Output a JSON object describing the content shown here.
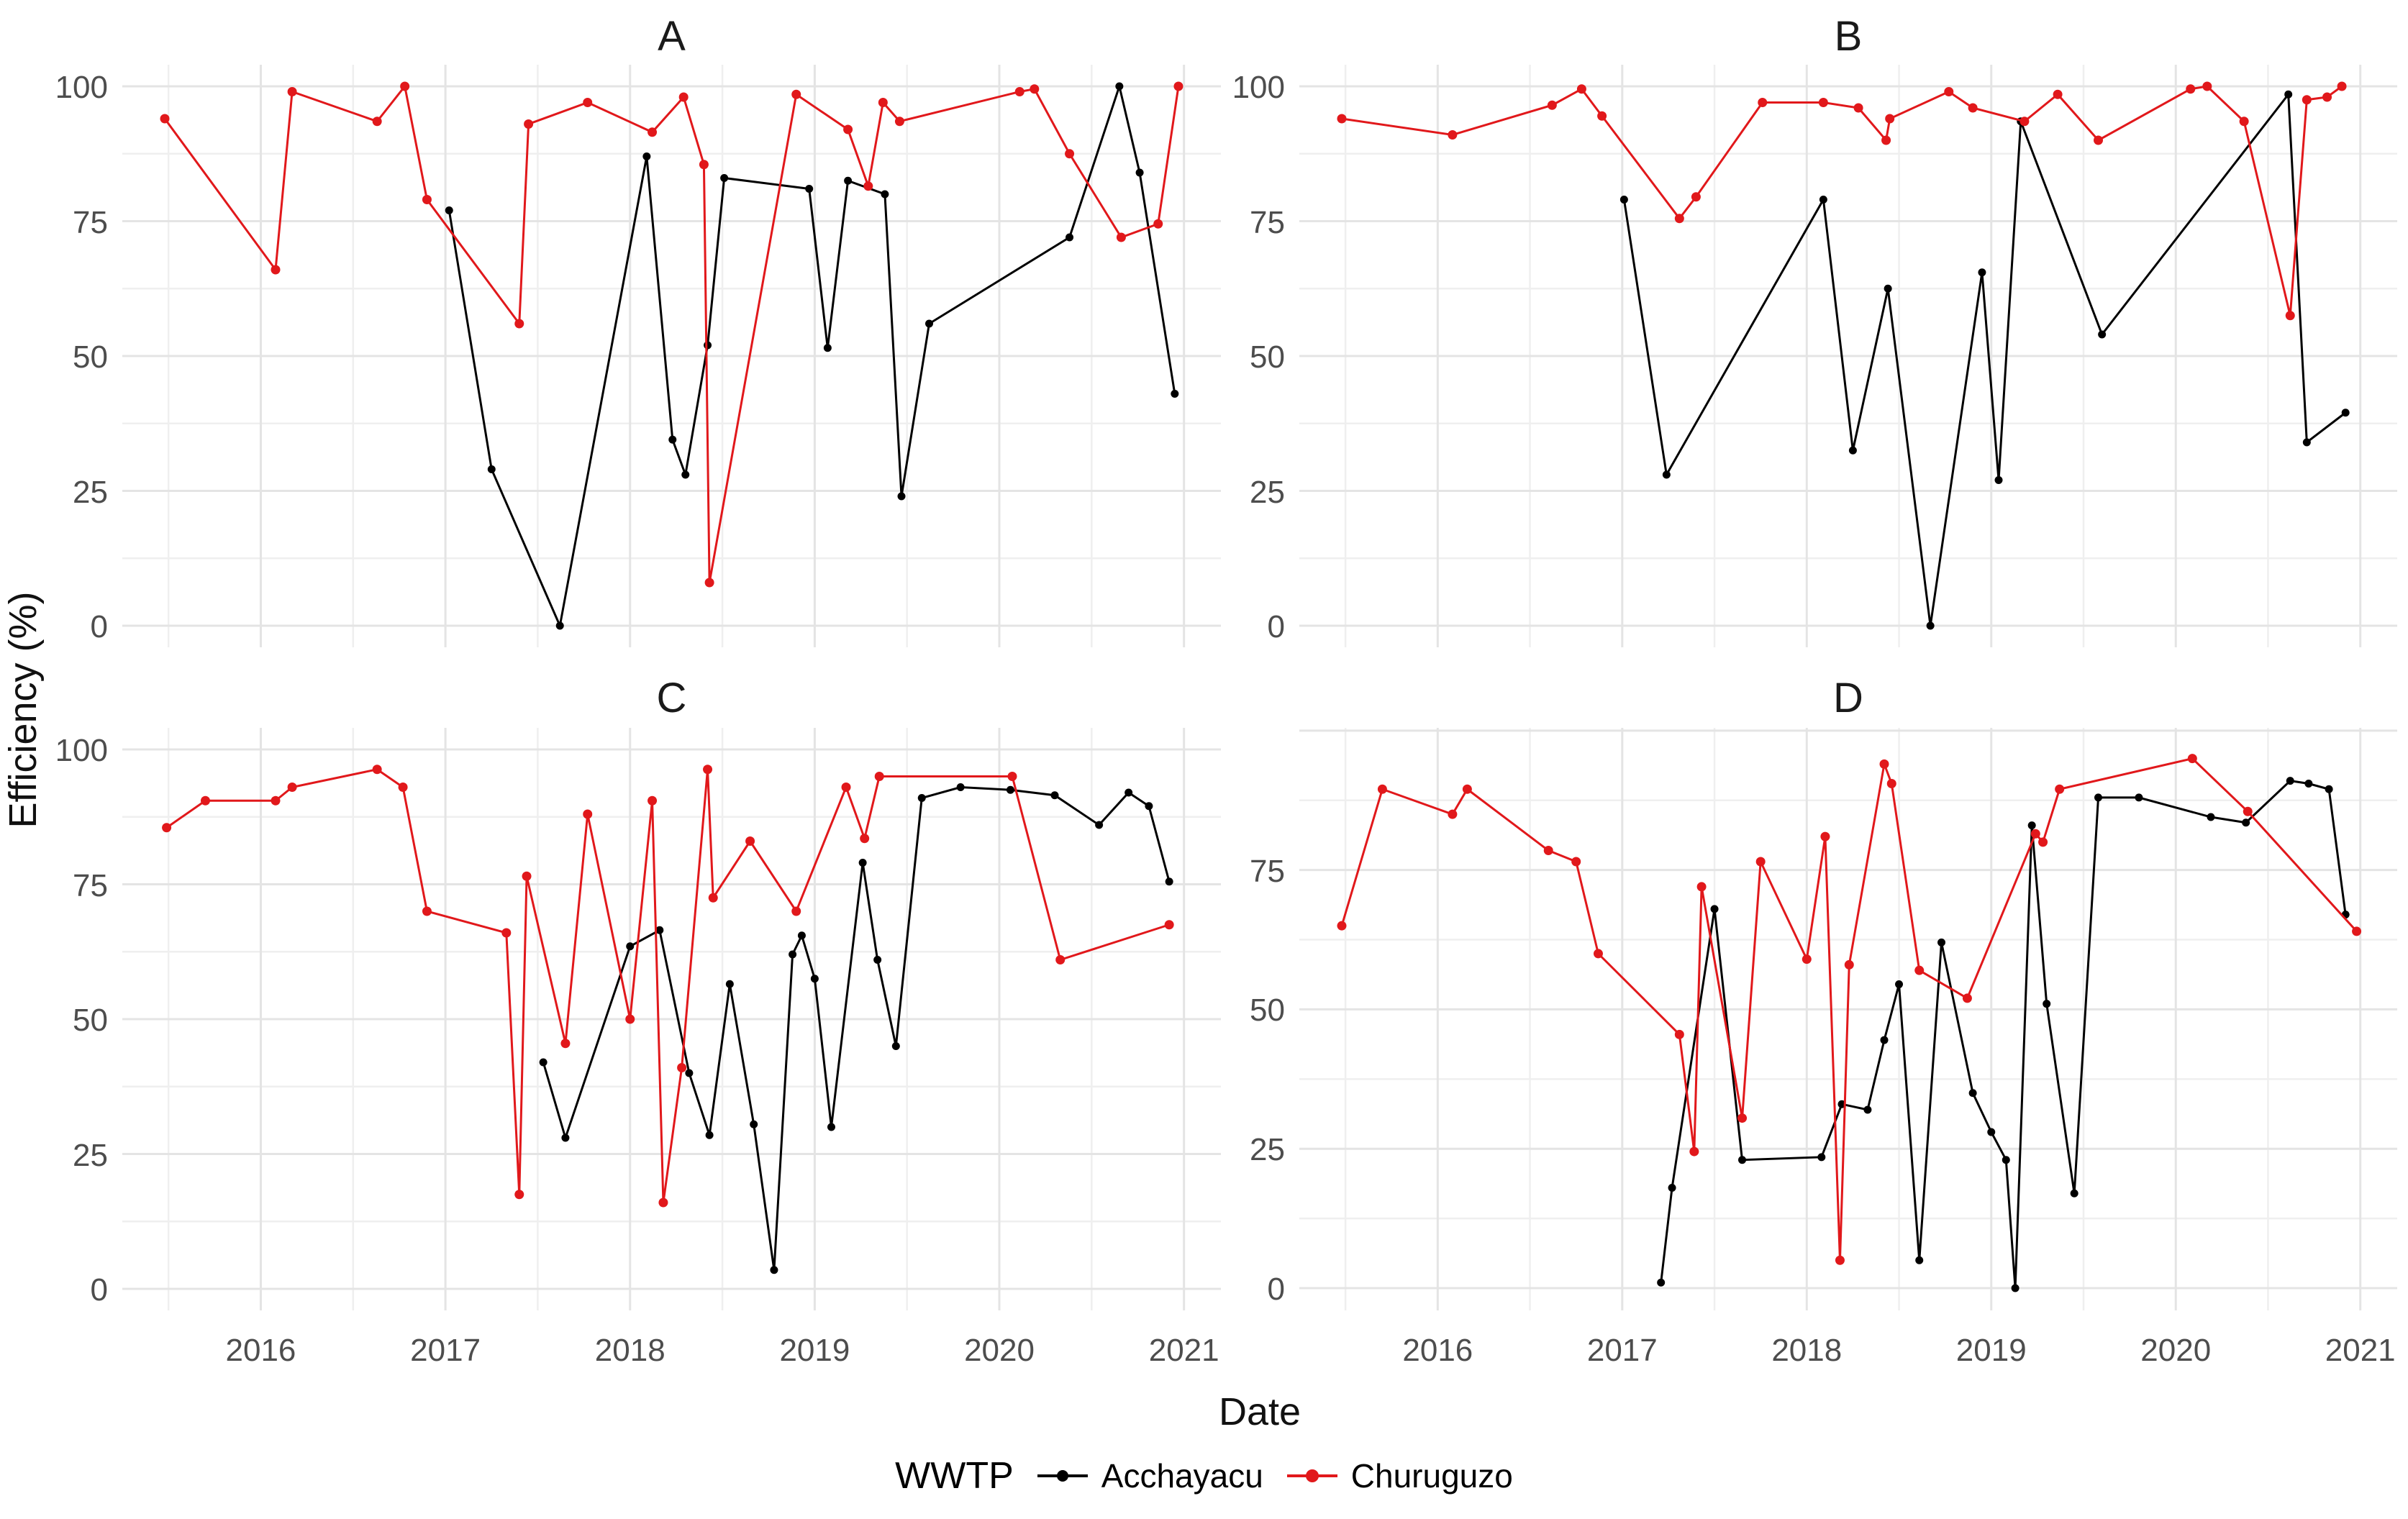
{
  "figure": {
    "background": "#ffffff"
  },
  "axes": {
    "ylabel": "Efficiency (%)",
    "xlabel": "Date",
    "x_tick_labels": [
      "2016",
      "2017",
      "2018",
      "2019",
      "2020",
      "2021"
    ],
    "x_tick_values": [
      2016,
      2017,
      2018,
      2019,
      2020,
      2021
    ]
  },
  "legend": {
    "title": "WWTP",
    "items": [
      {
        "label": "Acchayacu",
        "color": "#000000"
      },
      {
        "label": "Churuguzo",
        "color": "#e1181b"
      }
    ]
  },
  "colors": {
    "acchayacu": "#000000",
    "churuguzo": "#e1181b",
    "grid_major": "#e4e4e4",
    "grid_minor": "#efefef",
    "tick_text": "#4d4d4d"
  },
  "chart_data": [
    {
      "type": "line",
      "title": "A",
      "xlabel": "Date",
      "ylabel": "Efficiency (%)",
      "xlim": [
        2015.25,
        2021.2
      ],
      "ylim": [
        -4,
        104
      ],
      "grid": true,
      "x_ticks": [
        2016,
        2017,
        2018,
        2019,
        2020,
        2021
      ],
      "y_ticks": [
        0,
        25,
        50,
        75,
        100
      ],
      "show_x_tick_labels": false,
      "series": [
        {
          "name": "Acchayacu",
          "color": "#000000",
          "points": [
            [
              2017.02,
              77
            ],
            [
              2017.25,
              29
            ],
            [
              2017.62,
              0
            ],
            [
              2018.09,
              87
            ],
            [
              2018.23,
              34.5
            ],
            [
              2018.3,
              28
            ],
            [
              2018.42,
              52
            ],
            [
              2018.51,
              83
            ],
            [
              2018.97,
              81
            ],
            [
              2019.07,
              51.5
            ],
            [
              2019.18,
              82.5
            ],
            [
              2019.38,
              80
            ],
            [
              2019.47,
              24
            ],
            [
              2019.62,
              56
            ],
            [
              2020.38,
              72
            ],
            [
              2020.65,
              100
            ],
            [
              2020.76,
              84
            ],
            [
              2020.95,
              43
            ]
          ]
        },
        {
          "name": "Churuguzo",
          "color": "#e1181b",
          "points": [
            [
              2015.48,
              94
            ],
            [
              2016.08,
              66
            ],
            [
              2016.17,
              99
            ],
            [
              2016.63,
              93.5
            ],
            [
              2016.78,
              100
            ],
            [
              2016.9,
              79
            ],
            [
              2017.4,
              56
            ],
            [
              2017.45,
              93
            ],
            [
              2017.77,
              97
            ],
            [
              2018.12,
              91.5
            ],
            [
              2018.29,
              98
            ],
            [
              2018.4,
              85.5
            ],
            [
              2018.43,
              8
            ],
            [
              2018.9,
              98.5
            ],
            [
              2019.18,
              92
            ],
            [
              2019.29,
              81.5
            ],
            [
              2019.37,
              97
            ],
            [
              2019.46,
              93.5
            ],
            [
              2020.11,
              99
            ],
            [
              2020.19,
              99.5
            ],
            [
              2020.38,
              87.5
            ],
            [
              2020.66,
              72
            ],
            [
              2020.86,
              74.5
            ],
            [
              2020.97,
              100
            ]
          ]
        }
      ]
    },
    {
      "type": "line",
      "title": "B",
      "xlabel": "Date",
      "ylabel": "Efficiency (%)",
      "xlim": [
        2015.25,
        2021.2
      ],
      "ylim": [
        -4,
        104
      ],
      "grid": true,
      "x_ticks": [
        2016,
        2017,
        2018,
        2019,
        2020,
        2021
      ],
      "y_ticks": [
        0,
        25,
        50,
        75,
        100
      ],
      "show_x_tick_labels": false,
      "series": [
        {
          "name": "Acchayacu",
          "color": "#000000",
          "points": [
            [
              2017.01,
              79
            ],
            [
              2017.24,
              28
            ],
            [
              2018.09,
              79
            ],
            [
              2018.25,
              32.5
            ],
            [
              2018.44,
              62.5
            ],
            [
              2018.67,
              0
            ],
            [
              2018.95,
              65.5
            ],
            [
              2019.04,
              27
            ],
            [
              2019.16,
              93.5
            ],
            [
              2019.6,
              54
            ],
            [
              2020.61,
              98.5
            ],
            [
              2020.71,
              34
            ],
            [
              2020.92,
              39.5
            ]
          ]
        },
        {
          "name": "Churuguzo",
          "color": "#e1181b",
          "points": [
            [
              2015.48,
              94
            ],
            [
              2016.08,
              91
            ],
            [
              2016.62,
              96.5
            ],
            [
              2016.78,
              99.5
            ],
            [
              2016.89,
              94.5
            ],
            [
              2017.31,
              75.5
            ],
            [
              2017.4,
              79.5
            ],
            [
              2017.76,
              97
            ],
            [
              2018.09,
              97
            ],
            [
              2018.28,
              96
            ],
            [
              2018.43,
              90
            ],
            [
              2018.45,
              94
            ],
            [
              2018.77,
              99
            ],
            [
              2018.9,
              96
            ],
            [
              2019.18,
              93.5
            ],
            [
              2019.36,
              98.5
            ],
            [
              2019.58,
              90
            ],
            [
              2020.08,
              99.5
            ],
            [
              2020.17,
              100
            ],
            [
              2020.37,
              93.5
            ],
            [
              2020.62,
              57.5
            ],
            [
              2020.71,
              97.5
            ],
            [
              2020.82,
              98
            ],
            [
              2020.9,
              100
            ]
          ]
        }
      ]
    },
    {
      "type": "line",
      "title": "C",
      "xlabel": "Date",
      "ylabel": "Efficiency (%)",
      "xlim": [
        2015.25,
        2021.2
      ],
      "ylim": [
        -4,
        104
      ],
      "grid": true,
      "x_ticks": [
        2016,
        2017,
        2018,
        2019,
        2020,
        2021
      ],
      "y_ticks": [
        0,
        25,
        50,
        75,
        100
      ],
      "show_x_tick_labels": true,
      "series": [
        {
          "name": "Acchayacu",
          "color": "#000000",
          "points": [
            [
              2017.53,
              42
            ],
            [
              2017.65,
              28
            ],
            [
              2018.0,
              63.5
            ],
            [
              2018.16,
              66.5
            ],
            [
              2018.32,
              40
            ],
            [
              2018.43,
              28.5
            ],
            [
              2018.54,
              56.5
            ],
            [
              2018.67,
              30.5
            ],
            [
              2018.78,
              3.5
            ],
            [
              2018.88,
              62
            ],
            [
              2018.93,
              65.5
            ],
            [
              2019.0,
              57.5
            ],
            [
              2019.09,
              30
            ],
            [
              2019.26,
              79
            ],
            [
              2019.34,
              61
            ],
            [
              2019.44,
              45
            ],
            [
              2019.58,
              91
            ],
            [
              2019.79,
              93
            ],
            [
              2020.06,
              92.5
            ],
            [
              2020.3,
              91.5
            ],
            [
              2020.54,
              86
            ],
            [
              2020.7,
              92
            ],
            [
              2020.81,
              89.5
            ],
            [
              2020.92,
              75.5
            ]
          ]
        },
        {
          "name": "Churuguzo",
          "color": "#e1181b",
          "points": [
            [
              2015.49,
              85.5
            ],
            [
              2015.7,
              90.5
            ],
            [
              2016.08,
              90.5
            ],
            [
              2016.17,
              93
            ],
            [
              2016.63,
              96.3
            ],
            [
              2016.77,
              93
            ],
            [
              2016.9,
              70
            ],
            [
              2017.33,
              66
            ],
            [
              2017.4,
              17.5
            ],
            [
              2017.44,
              76.5
            ],
            [
              2017.65,
              45.5
            ],
            [
              2017.77,
              88
            ],
            [
              2018.0,
              50
            ],
            [
              2018.12,
              90.5
            ],
            [
              2018.18,
              16
            ],
            [
              2018.28,
              41
            ],
            [
              2018.42,
              96.3
            ],
            [
              2018.45,
              72.5
            ],
            [
              2018.65,
              83
            ],
            [
              2018.9,
              70
            ],
            [
              2019.17,
              93
            ],
            [
              2019.27,
              83.5
            ],
            [
              2019.35,
              95
            ],
            [
              2020.07,
              95
            ],
            [
              2020.33,
              61
            ],
            [
              2020.92,
              67.5
            ]
          ]
        }
      ]
    },
    {
      "type": "line",
      "title": "D",
      "xlabel": "Date",
      "ylabel": "Efficiency (%)",
      "xlim": [
        2015.25,
        2021.2
      ],
      "ylim": [
        -4,
        100.5
      ],
      "grid": true,
      "x_ticks": [
        2016,
        2017,
        2018,
        2019,
        2020,
        2021
      ],
      "y_ticks": [
        0,
        25,
        50,
        75
      ],
      "show_x_tick_labels": true,
      "series": [
        {
          "name": "Acchayacu",
          "color": "#000000",
          "points": [
            [
              2017.21,
              1
            ],
            [
              2017.27,
              18
            ],
            [
              2017.5,
              68
            ],
            [
              2017.65,
              23
            ],
            [
              2018.08,
              23.5
            ],
            [
              2018.19,
              33
            ],
            [
              2018.33,
              32
            ],
            [
              2018.42,
              44.5
            ],
            [
              2018.5,
              54.5
            ],
            [
              2018.61,
              5
            ],
            [
              2018.73,
              62
            ],
            [
              2018.9,
              35
            ],
            [
              2019.0,
              28
            ],
            [
              2019.08,
              23
            ],
            [
              2019.13,
              0
            ],
            [
              2019.22,
              83
            ],
            [
              2019.3,
              51
            ],
            [
              2019.45,
              17
            ],
            [
              2019.58,
              88
            ],
            [
              2019.8,
              88
            ],
            [
              2020.19,
              84.5
            ],
            [
              2020.38,
              83.5
            ],
            [
              2020.62,
              91
            ],
            [
              2020.72,
              90.5
            ],
            [
              2020.83,
              89.5
            ],
            [
              2020.92,
              67
            ]
          ]
        },
        {
          "name": "Churuguzo",
          "color": "#e1181b",
          "points": [
            [
              2015.48,
              65
            ],
            [
              2015.7,
              89.5
            ],
            [
              2016.08,
              85
            ],
            [
              2016.16,
              89.5
            ],
            [
              2016.6,
              78.5
            ],
            [
              2016.75,
              76.5
            ],
            [
              2016.87,
              60
            ],
            [
              2017.31,
              45.5
            ],
            [
              2017.39,
              24.5
            ],
            [
              2017.43,
              72
            ],
            [
              2017.65,
              30.5
            ],
            [
              2017.75,
              76.5
            ],
            [
              2018.0,
              59
            ],
            [
              2018.1,
              81
            ],
            [
              2018.18,
              5
            ],
            [
              2018.23,
              58
            ],
            [
              2018.42,
              94
            ],
            [
              2018.46,
              90.5
            ],
            [
              2018.61,
              57
            ],
            [
              2018.87,
              52
            ],
            [
              2019.24,
              81.5
            ],
            [
              2019.28,
              80
            ],
            [
              2019.37,
              89.5
            ],
            [
              2020.09,
              95
            ],
            [
              2020.39,
              85.5
            ],
            [
              2020.98,
              64
            ]
          ]
        }
      ]
    }
  ]
}
